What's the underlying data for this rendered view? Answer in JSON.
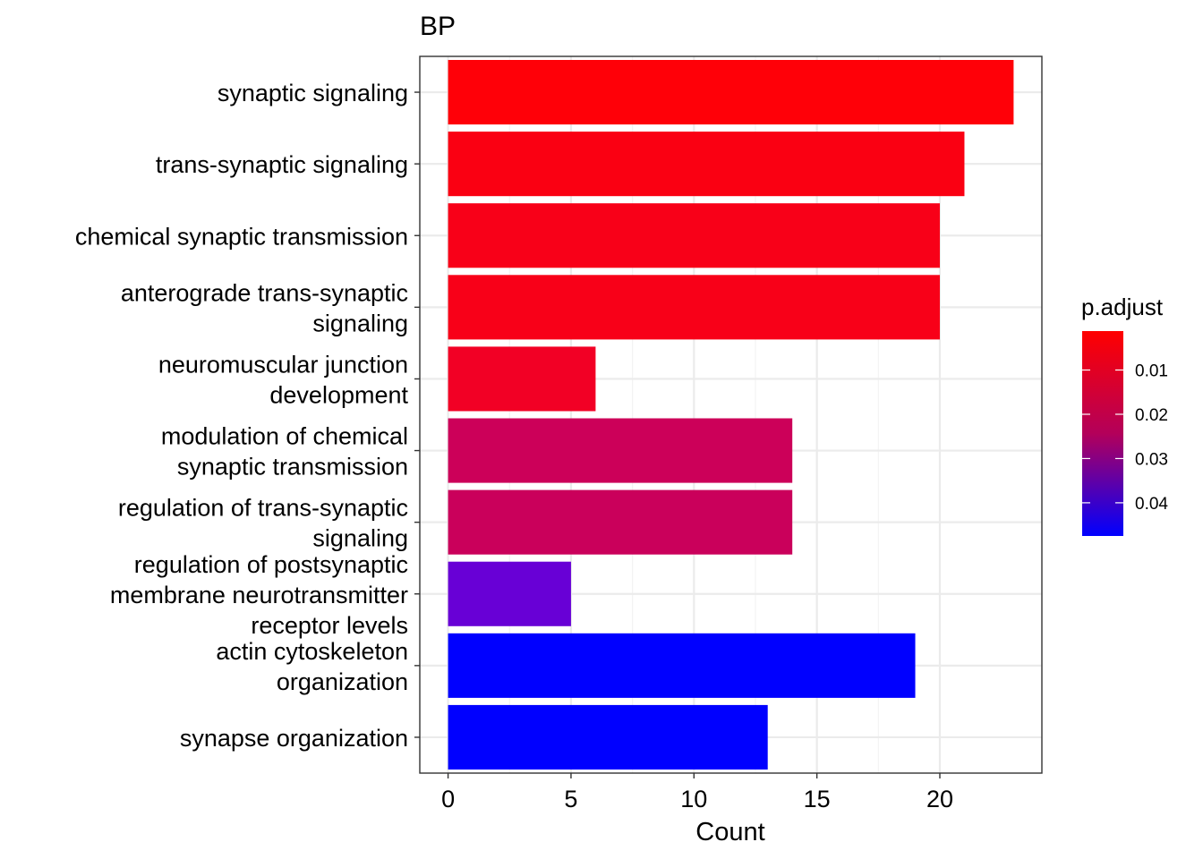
{
  "chart_data": {
    "type": "bar",
    "orientation": "horizontal",
    "title": "BP",
    "xlabel": "Count",
    "ylabel": "",
    "xlim": [
      -1.15,
      24.15
    ],
    "xticks": [
      0,
      5,
      10,
      15,
      20
    ],
    "grid": true,
    "legend_position": "right",
    "categories": [
      [
        "synaptic signaling"
      ],
      [
        "trans-synaptic signaling"
      ],
      [
        "chemical synaptic transmission"
      ],
      [
        "anterograde trans-synaptic",
        "signaling"
      ],
      [
        "neuromuscular junction",
        "development"
      ],
      [
        "modulation of chemical",
        "synaptic transmission"
      ],
      [
        "regulation of trans-synaptic",
        "signaling"
      ],
      [
        "regulation of postsynaptic",
        "membrane neurotransmitter",
        "receptor levels"
      ],
      [
        "actin cytoskeleton",
        "organization"
      ],
      [
        "synapse organization"
      ]
    ],
    "values": [
      23,
      21,
      20,
      20,
      6,
      14,
      14,
      5,
      19,
      13
    ],
    "colors": [
      "#FF0008",
      "#FA0012",
      "#F80018",
      "#F80018",
      "#F20025",
      "#CC0059",
      "#CA005B",
      "#6800D6",
      "#0000FF",
      "#0000FF"
    ],
    "legend": {
      "title": "p.adjust",
      "ticks": [
        "0.01",
        "0.02",
        "0.03",
        "0.04"
      ],
      "tick_values": [
        0.01,
        0.02,
        0.03,
        0.04
      ],
      "range": [
        0.0012,
        0.0475
      ],
      "colors": [
        "#FF0000",
        "#0000FF"
      ]
    }
  }
}
